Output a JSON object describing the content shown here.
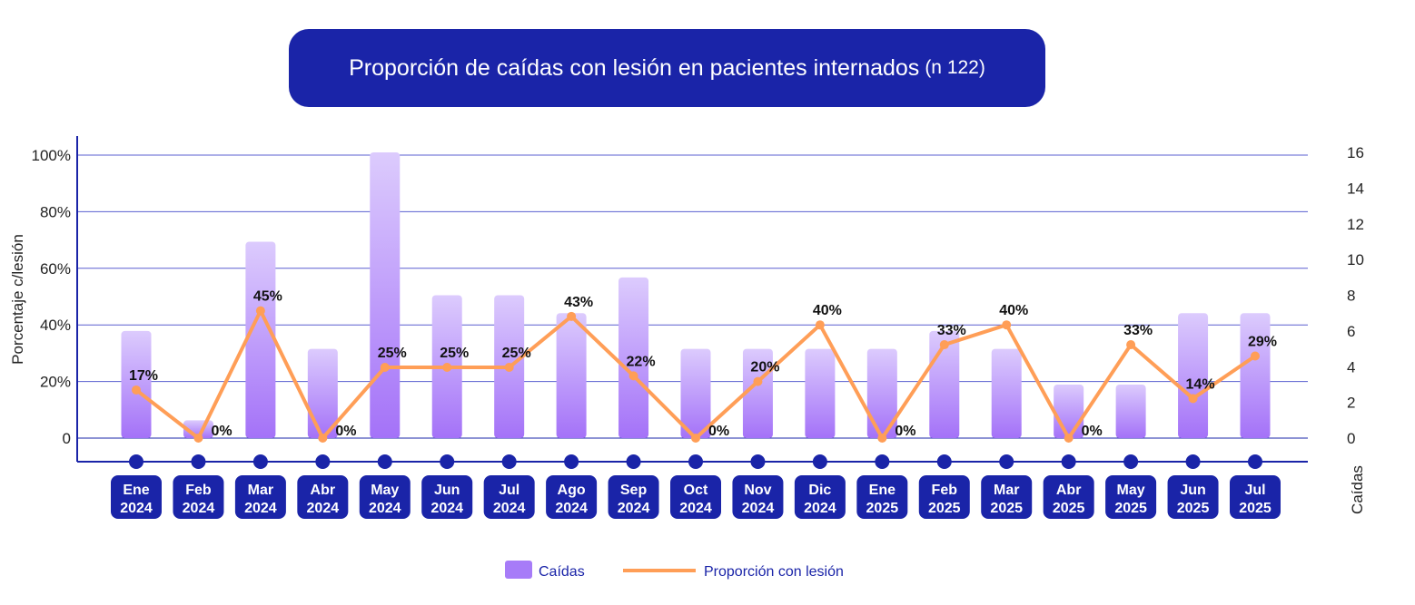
{
  "chart_data": {
    "type": "bar+line",
    "title": "Proporción de caídas con lesión en pacientes internados",
    "title_note": "(n 122)",
    "ylabel": "Porcentaje c/lesión",
    "y2label": "Caídas",
    "ylim": [
      0,
      100
    ],
    "y2lim": [
      0,
      16
    ],
    "yticks": [
      "0",
      "20%",
      "40%",
      "60%",
      "80%",
      "100%"
    ],
    "y2ticks": [
      "0",
      "2",
      "4",
      "6",
      "8",
      "10",
      "12",
      "14",
      "16"
    ],
    "categories": [
      [
        "Ene",
        "2024"
      ],
      [
        "Feb",
        "2024"
      ],
      [
        "Mar",
        "2024"
      ],
      [
        "Abr",
        "2024"
      ],
      [
        "May",
        "2024"
      ],
      [
        "Jun",
        "2024"
      ],
      [
        "Jul",
        "2024"
      ],
      [
        "Ago",
        "2024"
      ],
      [
        "Sep",
        "2024"
      ],
      [
        "Oct",
        "2024"
      ],
      [
        "Nov",
        "2024"
      ],
      [
        "Dic",
        "2024"
      ],
      [
        "Ene",
        "2025"
      ],
      [
        "Feb",
        "2025"
      ],
      [
        "Mar",
        "2025"
      ],
      [
        "Abr",
        "2025"
      ],
      [
        "May",
        "2025"
      ],
      [
        "Jun",
        "2025"
      ],
      [
        "Jul",
        "2025"
      ]
    ],
    "series": [
      {
        "name": "Caídas",
        "type": "bar",
        "axis": "right",
        "color": "#a77cf8",
        "values": [
          6,
          1,
          11,
          5,
          16,
          8,
          8,
          7,
          9,
          5,
          5,
          5,
          5,
          6,
          5,
          3,
          3,
          7,
          7
        ]
      },
      {
        "name": "Proporción con lesión",
        "type": "line",
        "axis": "left",
        "color": "#ff9e57",
        "values": [
          17,
          0,
          45,
          0,
          25,
          25,
          25,
          43,
          22,
          0,
          20,
          40,
          0,
          33,
          40,
          0,
          33,
          14,
          29
        ],
        "labels": [
          "17%",
          "0%",
          "45%",
          "0%",
          "25%",
          "25%",
          "25%",
          "43%",
          "22%",
          "0%",
          "20%",
          "40%",
          "0%",
          "33%",
          "40%",
          "0%",
          "33%",
          "14%",
          "29%"
        ]
      }
    ],
    "legend": "bottom",
    "grid": true
  },
  "colors": {
    "navy": "#1a24a8",
    "grid": "#5a5fd0"
  }
}
